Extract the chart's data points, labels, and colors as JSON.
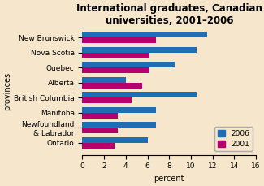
{
  "title": "International graduates, Canadian\nuniversities, 2001–2006",
  "provinces": [
    "New Brunswick",
    "Nova Scotia",
    "Quebec",
    "Alberta",
    "British Columbia",
    "Manitoba",
    "Newfoundland\n& Labrador",
    "Ontario"
  ],
  "values_2006": [
    11.5,
    10.5,
    8.5,
    4.0,
    10.5,
    6.8,
    6.8,
    6.0
  ],
  "values_2001": [
    6.8,
    6.2,
    6.2,
    5.5,
    4.5,
    3.3,
    3.3,
    3.0
  ],
  "color_2006": "#1f6eb5",
  "color_2001": "#b5006e",
  "xlabel": "percent",
  "ylabel": "provinces",
  "xlim": [
    0,
    16
  ],
  "xticks": [
    0,
    2,
    4,
    6,
    8,
    10,
    12,
    14,
    16
  ],
  "background_color": "#f5e6cc",
  "legend_labels": [
    "2006",
    "2001"
  ],
  "title_fontsize": 8.5,
  "axis_fontsize": 7,
  "tick_fontsize": 6.5
}
